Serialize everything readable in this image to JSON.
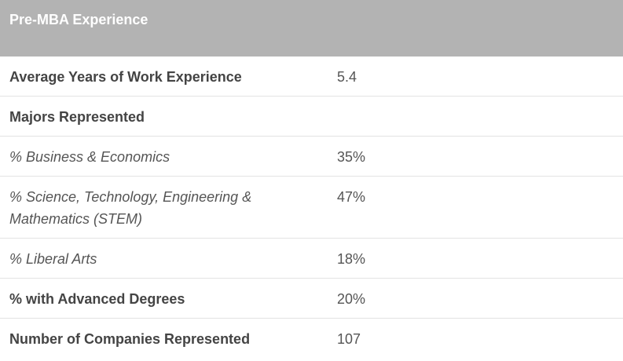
{
  "header": {
    "title": "Pre-MBA Experience"
  },
  "rows": [
    {
      "label": "Average Years of Work Experience",
      "value": "5.4"
    },
    {
      "label": "Majors Represented",
      "value": ""
    },
    {
      "label": "% Business & Economics",
      "value": "35%"
    },
    {
      "label": "% Science, Technology, Engineering & Mathematics (STEM)",
      "value": "47%"
    },
    {
      "label": "% Liberal Arts",
      "value": "18%"
    },
    {
      "label": "% with Advanced Degrees",
      "value": "20%"
    },
    {
      "label": "Number of Companies Represented",
      "value": "107"
    }
  ],
  "colors": {
    "header_bg": "#b3b3b3",
    "header_text": "#ffffff",
    "row_divider": "#e3e3e3",
    "text": "#444444"
  }
}
